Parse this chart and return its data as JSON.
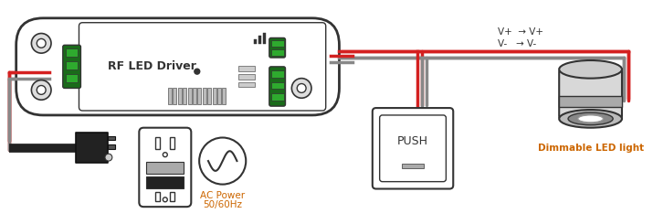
{
  "bg_color": "#ffffff",
  "dark": "#333333",
  "red": "#d42020",
  "gray": "#888888",
  "green_dark": "#1a6b1a",
  "green_light": "#2eaa2e",
  "orange": "#cc6600",
  "driver_label": "RF LED Driver",
  "push_label": "PUSH",
  "ac_line1": "AC Power",
  "ac_line2": "50/60Hz",
  "led_label": "Dimmable LED light",
  "vplus": "V+  → V+",
  "vminus": "V-   → V-"
}
